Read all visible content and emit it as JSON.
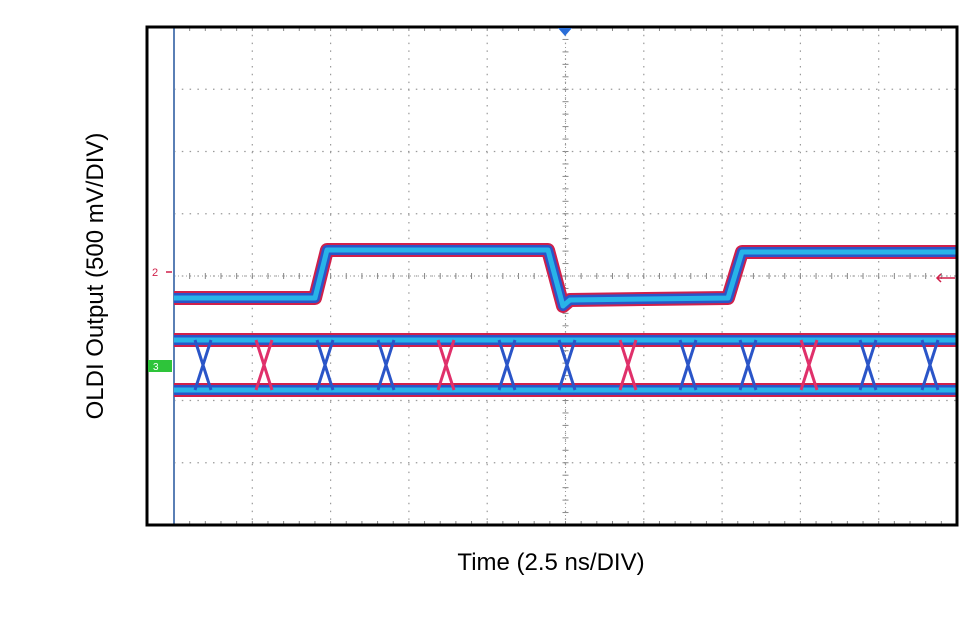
{
  "x_axis_label": "Time (2.5 ns/DIV)",
  "y_axis_label": "OLDI Output (500 mV/DIV)",
  "channel_markers": [
    "2",
    "3"
  ]
}
